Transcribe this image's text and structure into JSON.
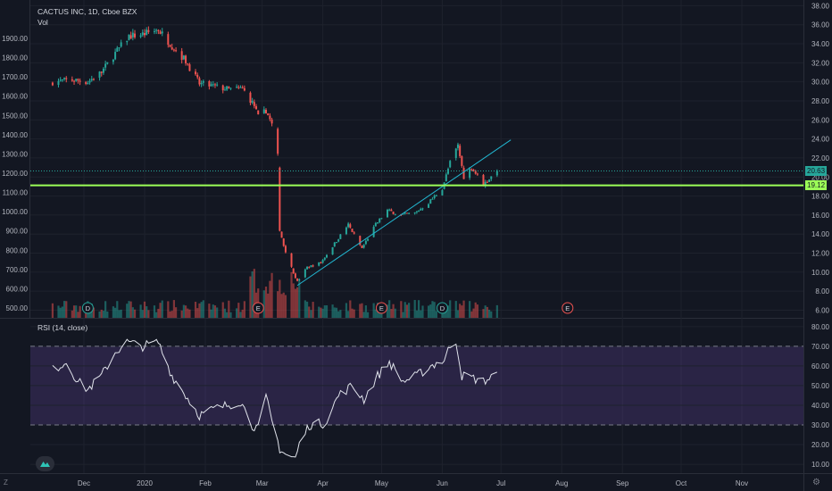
{
  "symbol_legend": "CACTUS INC, 1D, Cboe BZX",
  "vol_legend": "Vol",
  "rsi_legend": "RSI (14, close)",
  "tags": {
    "last_price": "20.63",
    "level_price": "19.12"
  },
  "zoom_label": "Z",
  "colors": {
    "up": "#26a69a",
    "down": "#ef5350",
    "level": "#9cff57",
    "trend": "#22b6d0",
    "rsi_line": "#e0e3eb",
    "rsi_band": "#7e57c2",
    "bg": "#131722"
  },
  "icons": {
    "logo": "tradingview-logo-icon",
    "settings": "gear-icon"
  },
  "chart_data": [
    {
      "type": "candlestick",
      "title": "CACTUS INC, 1D, Cboe BZX",
      "x_ticks": [
        "Dec",
        "2020",
        "Feb",
        "Mar",
        "Apr",
        "May",
        "Jun",
        "Jul",
        "Aug",
        "Sep",
        "Oct",
        "Nov"
      ],
      "right_axis_ticks": [
        "38.00",
        "36.00",
        "34.00",
        "32.00",
        "30.00",
        "28.00",
        "26.00",
        "24.00",
        "22.00",
        "20.00",
        "18.00",
        "16.00",
        "14.00",
        "12.00",
        "10.00",
        "8.00",
        "6.00"
      ],
      "left_axis_ticks": [
        "1900.00",
        "1800.00",
        "1700.00",
        "1600.00",
        "1500.00",
        "1400.00",
        "1300.00",
        "1200.00",
        "1100.00",
        "1000.00",
        "900.00",
        "800.00",
        "700.00",
        "600.00",
        "500.00"
      ],
      "ylim": [
        5.2,
        38.6
      ],
      "last_price": 20.63,
      "horizontal_level": 19.12,
      "trendline": [
        {
          "date": "2020-03-19",
          "price": 8.6
        },
        {
          "date": "2020-07-06",
          "price": 23.9
        }
      ],
      "event_markers": [
        {
          "label": "D",
          "date": "2019-12-03"
        },
        {
          "label": "E",
          "date": "2020-02-28"
        },
        {
          "label": "E",
          "date": "2020-05-01"
        },
        {
          "label": "D",
          "date": "2020-06-01"
        },
        {
          "label": "E",
          "date": "2020-08-04"
        }
      ],
      "close_anchors": [
        {
          "date": "2019-11-15",
          "price": 30.0
        },
        {
          "date": "2019-11-25",
          "price": 30.2
        },
        {
          "date": "2019-12-03",
          "price": 30.0
        },
        {
          "date": "2019-12-10",
          "price": 31.0
        },
        {
          "date": "2019-12-17",
          "price": 33.0
        },
        {
          "date": "2019-12-24",
          "price": 34.8
        },
        {
          "date": "2019-12-31",
          "price": 35.0
        },
        {
          "date": "2020-01-08",
          "price": 35.5
        },
        {
          "date": "2020-01-15",
          "price": 33.8
        },
        {
          "date": "2020-01-22",
          "price": 32.2
        },
        {
          "date": "2020-01-29",
          "price": 29.8
        },
        {
          "date": "2020-02-06",
          "price": 29.5
        },
        {
          "date": "2020-02-13",
          "price": 29.2
        },
        {
          "date": "2020-02-20",
          "price": 29.3
        },
        {
          "date": "2020-02-26",
          "price": 27.5
        },
        {
          "date": "2020-02-28",
          "price": 26.3
        },
        {
          "date": "2020-03-03",
          "price": 27.0
        },
        {
          "date": "2020-03-06",
          "price": 25.5
        },
        {
          "date": "2020-03-09",
          "price": 22.2
        },
        {
          "date": "2020-03-10",
          "price": 14.5
        },
        {
          "date": "2020-03-12",
          "price": 12.8
        },
        {
          "date": "2020-03-16",
          "price": 10.5
        },
        {
          "date": "2020-03-19",
          "price": 9.0
        },
        {
          "date": "2020-03-24",
          "price": 10.5
        },
        {
          "date": "2020-03-31",
          "price": 11.0
        },
        {
          "date": "2020-04-07",
          "price": 13.0
        },
        {
          "date": "2020-04-14",
          "price": 15.0
        },
        {
          "date": "2020-04-21",
          "price": 12.5
        },
        {
          "date": "2020-04-28",
          "price": 15.0
        },
        {
          "date": "2020-05-04",
          "price": 16.5
        },
        {
          "date": "2020-05-11",
          "price": 16.0
        },
        {
          "date": "2020-05-18",
          "price": 16.2
        },
        {
          "date": "2020-05-25",
          "price": 17.3
        },
        {
          "date": "2020-06-01",
          "price": 18.8
        },
        {
          "date": "2020-06-05",
          "price": 21.5
        },
        {
          "date": "2020-06-09",
          "price": 23.3
        },
        {
          "date": "2020-06-12",
          "price": 20.0
        },
        {
          "date": "2020-06-16",
          "price": 21.0
        },
        {
          "date": "2020-06-22",
          "price": 19.2
        },
        {
          "date": "2020-06-29",
          "price": 20.63
        }
      ]
    },
    {
      "type": "line",
      "title": "RSI (14, close)",
      "y_ticks": [
        "80.00",
        "70.00",
        "60.00",
        "50.00",
        "40.00",
        "30.00",
        "20.00",
        "10.00"
      ],
      "ylim": [
        5.5,
        84
      ],
      "upper_band": 70,
      "lower_band": 30,
      "rsi_anchors": [
        {
          "date": "2019-11-15",
          "value": 58
        },
        {
          "date": "2019-11-22",
          "value": 62
        },
        {
          "date": "2019-11-28",
          "value": 52
        },
        {
          "date": "2019-12-03",
          "value": 48
        },
        {
          "date": "2019-12-10",
          "value": 55
        },
        {
          "date": "2019-12-17",
          "value": 67
        },
        {
          "date": "2019-12-23",
          "value": 72
        },
        {
          "date": "2019-12-31",
          "value": 70
        },
        {
          "date": "2020-01-08",
          "value": 72
        },
        {
          "date": "2020-01-15",
          "value": 55
        },
        {
          "date": "2020-01-22",
          "value": 45
        },
        {
          "date": "2020-01-29",
          "value": 35
        },
        {
          "date": "2020-02-05",
          "value": 38
        },
        {
          "date": "2020-02-12",
          "value": 40
        },
        {
          "date": "2020-02-19",
          "value": 42
        },
        {
          "date": "2020-02-25",
          "value": 30
        },
        {
          "date": "2020-02-28",
          "value": 28
        },
        {
          "date": "2020-03-03",
          "value": 44
        },
        {
          "date": "2020-03-06",
          "value": 32
        },
        {
          "date": "2020-03-10",
          "value": 18
        },
        {
          "date": "2020-03-13",
          "value": 15
        },
        {
          "date": "2020-03-18",
          "value": 13
        },
        {
          "date": "2020-03-20",
          "value": 20
        },
        {
          "date": "2020-03-25",
          "value": 30
        },
        {
          "date": "2020-04-02",
          "value": 31
        },
        {
          "date": "2020-04-09",
          "value": 45
        },
        {
          "date": "2020-04-16",
          "value": 50
        },
        {
          "date": "2020-04-22",
          "value": 43
        },
        {
          "date": "2020-04-29",
          "value": 55
        },
        {
          "date": "2020-05-05",
          "value": 62
        },
        {
          "date": "2020-05-12",
          "value": 52
        },
        {
          "date": "2020-05-19",
          "value": 55
        },
        {
          "date": "2020-05-26",
          "value": 60
        },
        {
          "date": "2020-06-02",
          "value": 63
        },
        {
          "date": "2020-06-05",
          "value": 70
        },
        {
          "date": "2020-06-08",
          "value": 73
        },
        {
          "date": "2020-06-11",
          "value": 55
        },
        {
          "date": "2020-06-16",
          "value": 54
        },
        {
          "date": "2020-06-22",
          "value": 52
        },
        {
          "date": "2020-06-29",
          "value": 56
        }
      ]
    }
  ]
}
